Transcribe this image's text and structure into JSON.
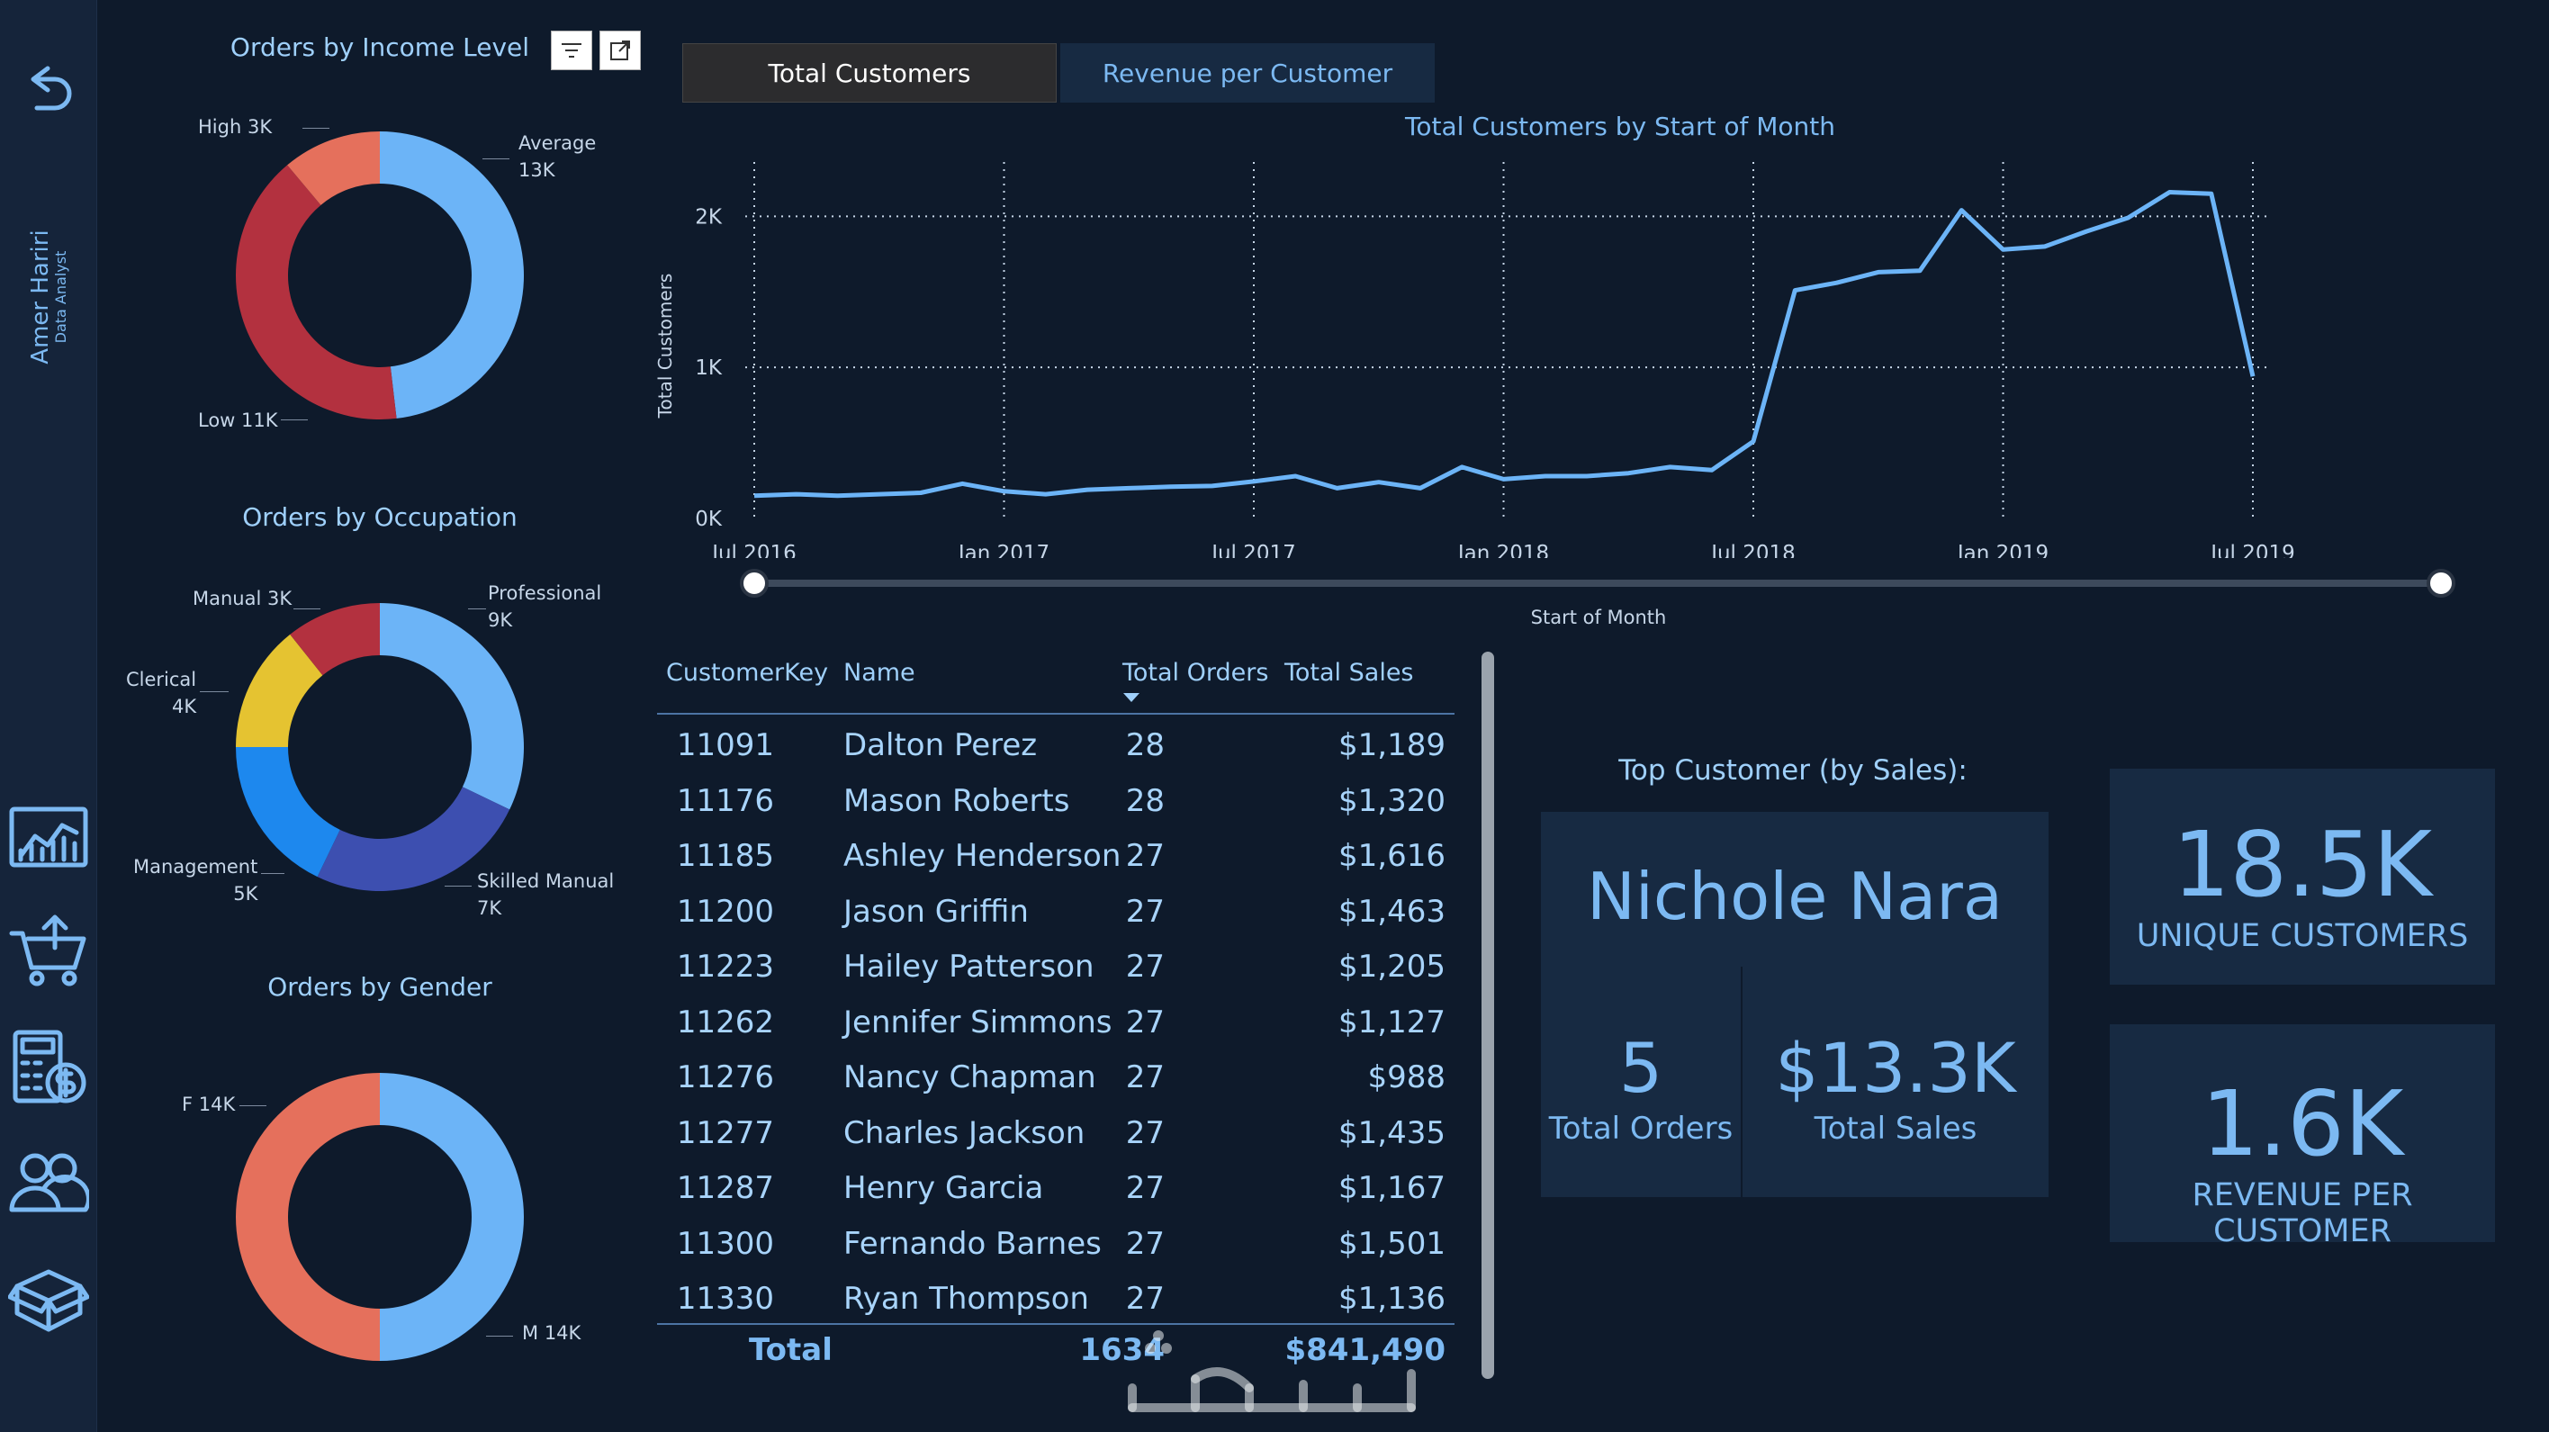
{
  "sidebar": {
    "author_name": "Amer Hariri",
    "author_role": "Data Analyst",
    "nav_icons": [
      "back-icon",
      "chart-icon",
      "cart-icon",
      "calculator-icon",
      "users-icon",
      "box-icon"
    ]
  },
  "income_chart": {
    "title": "Orders by Income Level",
    "slices": [
      {
        "label": "Average",
        "value_label": "13K",
        "value": 13,
        "color": "#6cb4f7"
      },
      {
        "label": "Low",
        "value_label": "11K",
        "value": 11,
        "color": "#b3313f"
      },
      {
        "label": "High",
        "value_label": "3K",
        "value": 3,
        "color": "#e5705c"
      }
    ]
  },
  "occupation_chart": {
    "title": "Orders by Occupation",
    "slices": [
      {
        "label": "Professional",
        "value_label": "9K",
        "value": 9,
        "color": "#6cb4f7"
      },
      {
        "label": "Skilled Manual",
        "value_label": "7K",
        "value": 7,
        "color": "#3d4fb0"
      },
      {
        "label": "Management",
        "value_label": "5K",
        "value": 5,
        "color": "#1d88ee"
      },
      {
        "label": "Clerical",
        "value_label": "4K",
        "value": 4,
        "color": "#e5c331"
      },
      {
        "label": "Manual",
        "value_label": "3K",
        "value": 3,
        "color": "#b3313f"
      }
    ]
  },
  "gender_chart": {
    "title": "Orders by Gender",
    "slices": [
      {
        "label": "M",
        "value_label": "14K",
        "value": 14,
        "color": "#6cb4f7"
      },
      {
        "label": "F",
        "value_label": "14K",
        "value": 14,
        "color": "#e5705c"
      }
    ]
  },
  "tabs": [
    {
      "label": "Total Customers",
      "active": true
    },
    {
      "label": "Revenue per Customer",
      "active": false
    }
  ],
  "chart_data": {
    "type": "line",
    "title": "Total Customers by Start of Month",
    "xlabel": "Start of Month",
    "ylabel": "Total Customers",
    "ylim": [
      0,
      2300
    ],
    "yticks": [
      {
        "v": 0,
        "label": "0K"
      },
      {
        "v": 1000,
        "label": "1K"
      },
      {
        "v": 2000,
        "label": "2K"
      }
    ],
    "xticks": [
      {
        "v": 0,
        "label": "Jul 2016"
      },
      {
        "v": 6,
        "label": "Jan 2017"
      },
      {
        "v": 12,
        "label": "Jul 2017"
      },
      {
        "v": 18,
        "label": "Jan 2018"
      },
      {
        "v": 24,
        "label": "Jul 2018"
      },
      {
        "v": 30,
        "label": "Jan 2019"
      },
      {
        "v": 36,
        "label": "Jul 2019"
      }
    ],
    "grid": true,
    "series": [
      {
        "color": "#6cb4f7",
        "values": [
          150,
          160,
          150,
          160,
          170,
          230,
          180,
          160,
          190,
          200,
          210,
          215,
          245,
          280,
          200,
          240,
          200,
          340,
          260,
          280,
          280,
          300,
          340,
          320,
          510,
          1510,
          1560,
          1630,
          1640,
          2040,
          1780,
          1800,
          1900,
          1990,
          2160,
          2150,
          940
        ]
      }
    ]
  },
  "table": {
    "headers": [
      "CustomerKey",
      "Name",
      "Total Orders",
      "Total Sales"
    ],
    "rows": [
      [
        "11091",
        "Dalton Perez",
        "28",
        "$1,189"
      ],
      [
        "11176",
        "Mason Roberts",
        "28",
        "$1,320"
      ],
      [
        "11185",
        "Ashley Henderson",
        "27",
        "$1,616"
      ],
      [
        "11200",
        "Jason Griffin",
        "27",
        "$1,463"
      ],
      [
        "11223",
        "Hailey Patterson",
        "27",
        "$1,205"
      ],
      [
        "11262",
        "Jennifer Simmons",
        "27",
        "$1,127"
      ],
      [
        "11276",
        "Nancy Chapman",
        "27",
        "$988"
      ],
      [
        "11277",
        "Charles Jackson",
        "27",
        "$1,435"
      ],
      [
        "11287",
        "Henry Garcia",
        "27",
        "$1,167"
      ],
      [
        "11300",
        "Fernando Barnes",
        "27",
        "$1,501"
      ],
      [
        "11330",
        "Ryan Thompson",
        "27",
        "$1,136"
      ]
    ],
    "total_label": "Total",
    "total_orders": "1634",
    "total_sales": "$841,490"
  },
  "top_customer": {
    "label": "Top Customer (by Sales):",
    "name": "Nichole Nara",
    "orders_value": "5",
    "orders_label": "Total Orders",
    "sales_value": "$13.3K",
    "sales_label": "Total Sales"
  },
  "kpis": {
    "unique_customers_value": "18.5K",
    "unique_customers_label": "UNIQUE CUSTOMERS",
    "revenue_value": "1.6K",
    "revenue_label": "REVENUE PER CUSTOMER"
  },
  "watermark_text": "خمسات"
}
